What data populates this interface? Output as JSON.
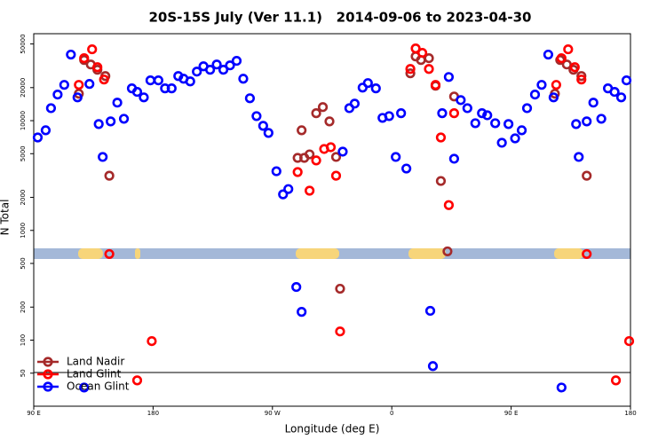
{
  "chart_data": {
    "type": "scatter",
    "title": "20S-15S July (Ver 11.1)   2014-09-06 to 2023-04-30",
    "xlabel": "Longitude (deg E)",
    "ylabel": "N Total",
    "xlim": [
      90,
      540
    ],
    "ylim": [
      25,
      62000
    ],
    "log_y": true,
    "legend": "lower left",
    "xticks": [
      {
        "value": 90,
        "label": "90 E"
      },
      {
        "value": 180,
        "label": "180"
      },
      {
        "value": 270,
        "label": "90 W"
      },
      {
        "value": 360,
        "label": "0"
      },
      {
        "value": 450,
        "label": "90 E"
      },
      {
        "value": 540,
        "label": "180"
      }
    ],
    "yticks": [
      50,
      100,
      200,
      500,
      1000,
      2000,
      5000,
      10000,
      20000,
      50000
    ],
    "series": [
      {
        "name": "Land Nadir",
        "color": "#a52a2a",
        "x": [
          124,
          128,
          133,
          138,
          144,
          147,
          289,
          292,
          294,
          298,
          303,
          308,
          313,
          318,
          321,
          374,
          378,
          382,
          388,
          393,
          397,
          402,
          407,
          483,
          487,
          492,
          497,
          503,
          507
        ],
        "values": [
          17600,
          35700,
          32500,
          29100,
          25500,
          3150,
          4580,
          8170,
          4580,
          4930,
          11700,
          13300,
          9850,
          4670,
          294,
          27000,
          38500,
          35700,
          37100,
          20800,
          2820,
          644,
          16600,
          17600,
          35700,
          32500,
          29100,
          25500,
          3150
        ]
      },
      {
        "name": "Land Glint",
        "color": "#ff0000",
        "x": [
          124,
          128,
          134,
          138,
          143,
          147,
          168,
          179,
          289,
          298,
          303,
          309,
          314,
          318,
          321,
          374,
          378,
          383,
          388,
          393,
          397,
          403,
          407,
          484,
          488,
          493,
          498,
          503,
          507,
          529,
          539
        ],
        "values": [
          21200,
          37100,
          44700,
          30700,
          23700,
          609,
          43,
          98,
          3400,
          2300,
          4340,
          5520,
          5730,
          3150,
          120,
          29600,
          45500,
          41500,
          29600,
          21200,
          7030,
          1700,
          11700,
          21200,
          37100,
          44700,
          30700,
          23700,
          609,
          43,
          98
        ]
      },
      {
        "name": "Ocean Glint",
        "color": "#0000ff",
        "x": [
          93,
          99,
          103,
          108,
          113,
          118,
          123,
          128,
          132,
          139,
          142,
          148,
          153,
          158,
          164,
          168,
          173,
          178,
          184,
          189,
          194,
          199,
          203,
          208,
          213,
          218,
          223,
          228,
          233,
          238,
          243,
          248,
          253,
          258,
          263,
          267,
          273,
          278,
          282,
          288,
          292,
          323,
          328,
          332,
          338,
          342,
          348,
          353,
          358,
          363,
          367,
          371,
          389,
          391,
          398,
          403,
          407,
          412,
          417,
          423,
          428,
          432,
          438,
          443,
          448,
          453,
          458,
          462,
          468,
          473,
          478,
          482,
          488,
          499,
          501,
          507,
          512,
          518,
          523,
          528,
          533,
          537
        ],
        "values": [
          7030,
          8170,
          13000,
          17300,
          21200,
          40000,
          16300,
          37,
          21600,
          9310,
          4670,
          9850,
          14600,
          10400,
          19700,
          18300,
          16300,
          23300,
          23300,
          19700,
          19700,
          25500,
          24100,
          22800,
          28000,
          31300,
          29100,
          32500,
          29100,
          31900,
          35100,
          24100,
          16000,
          11000,
          8970,
          7730,
          3460,
          2130,
          2380,
          305,
          181,
          5220,
          13000,
          14300,
          20000,
          22000,
          19700,
          10600,
          11000,
          4670,
          11700,
          3660,
          185,
          58,
          11700,
          25000,
          4500,
          15400,
          13000,
          9480,
          11700,
          11200,
          9480,
          6290,
          9310,
          6900,
          8170,
          13000,
          17300,
          21200,
          40000,
          16300,
          37,
          9310,
          4670,
          9850,
          14600,
          10400,
          19700,
          18300,
          16300,
          23300
        ]
      }
    ]
  }
}
